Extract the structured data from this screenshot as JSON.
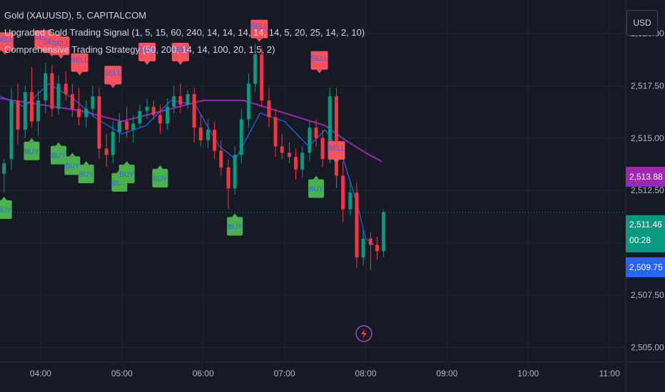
{
  "header": {
    "symbol_line": "Gold (XAUUSD), 5, CAPITALCOM",
    "indicator_1": "Upgraded Gold Trading Signal (1, 5, 15, 60, 240, 14, 14, 14, 14, 14, 5, 20, 25, 14, 2, 10)",
    "indicator_2": "Comprehensive Trading Strategy (50, 200, 14, 14, 100, 20, 1.5, 2)",
    "currency_button": "USD"
  },
  "price_tags": {
    "ma_value": "2,513.88",
    "last_price": "2,511.46",
    "countdown": "00:28",
    "blue_value": "2,509.75"
  },
  "colors": {
    "background": "#161a25",
    "up": "#089981",
    "down": "#f23645",
    "ma_purple": "#9c27b0",
    "ma_blue": "#2962ff",
    "sell_label": "#f7525f",
    "buy_label": "#4caf50"
  },
  "chart_data": {
    "type": "candlestick",
    "x_tick_labels": [
      "04:00",
      "05:00",
      "06:00",
      "07:00",
      "08:00",
      "09:00",
      "10:00",
      "11:00"
    ],
    "y_tick_labels": [
      "2,505.00",
      "2,507.50",
      "2,510.00",
      "2,512.50",
      "2,515.00",
      "2,517.50",
      "2,520.00"
    ],
    "y_ticks": [
      2505,
      2507.5,
      2510,
      2512.5,
      2515,
      2517.5,
      2520
    ],
    "ylim": [
      2504.3,
      2521.6
    ],
    "x_axis_hours": [
      4,
      5,
      6,
      7,
      8,
      9,
      10,
      11
    ],
    "x_range_hours": [
      3.5,
      11.2
    ],
    "candles": [
      {
        "t": 3.55,
        "o": 2513.3,
        "h": 2514.0,
        "l": 2512.4,
        "c": 2513.8
      },
      {
        "t": 3.64,
        "o": 2514.0,
        "h": 2517.4,
        "l": 2513.5,
        "c": 2516.8
      },
      {
        "t": 3.72,
        "o": 2516.8,
        "h": 2517.6,
        "l": 2514.7,
        "c": 2515.4
      },
      {
        "t": 3.81,
        "o": 2515.4,
        "h": 2517.5,
        "l": 2515.0,
        "c": 2517.2
      },
      {
        "t": 3.89,
        "o": 2517.2,
        "h": 2518.4,
        "l": 2515.5,
        "c": 2515.8
      },
      {
        "t": 3.97,
        "o": 2515.8,
        "h": 2517.3,
        "l": 2515.1,
        "c": 2516.8
      },
      {
        "t": 4.06,
        "o": 2516.8,
        "h": 2518.6,
        "l": 2516.2,
        "c": 2518.1
      },
      {
        "t": 4.14,
        "o": 2518.1,
        "h": 2518.5,
        "l": 2516.0,
        "c": 2516.4
      },
      {
        "t": 4.22,
        "o": 2516.4,
        "h": 2518.0,
        "l": 2516.1,
        "c": 2517.6
      },
      {
        "t": 4.31,
        "o": 2517.6,
        "h": 2518.2,
        "l": 2516.8,
        "c": 2517.1
      },
      {
        "t": 4.39,
        "o": 2517.1,
        "h": 2517.6,
        "l": 2516.0,
        "c": 2516.4
      },
      {
        "t": 4.47,
        "o": 2516.4,
        "h": 2517.4,
        "l": 2515.6,
        "c": 2516.0
      },
      {
        "t": 4.56,
        "o": 2516.0,
        "h": 2516.8,
        "l": 2515.5,
        "c": 2516.4
      },
      {
        "t": 4.64,
        "o": 2516.4,
        "h": 2517.5,
        "l": 2516.0,
        "c": 2517.0
      },
      {
        "t": 4.72,
        "o": 2517.0,
        "h": 2517.4,
        "l": 2514.0,
        "c": 2514.5
      },
      {
        "t": 4.81,
        "o": 2514.5,
        "h": 2515.2,
        "l": 2513.6,
        "c": 2514.2
      },
      {
        "t": 4.89,
        "o": 2514.2,
        "h": 2515.8,
        "l": 2513.8,
        "c": 2515.3
      },
      {
        "t": 4.97,
        "o": 2515.3,
        "h": 2516.2,
        "l": 2514.8,
        "c": 2515.8
      },
      {
        "t": 5.06,
        "o": 2515.8,
        "h": 2516.5,
        "l": 2515.0,
        "c": 2515.4
      },
      {
        "t": 5.14,
        "o": 2515.4,
        "h": 2516.1,
        "l": 2514.8,
        "c": 2515.7
      },
      {
        "t": 5.22,
        "o": 2515.7,
        "h": 2516.6,
        "l": 2515.5,
        "c": 2516.3
      },
      {
        "t": 5.31,
        "o": 2516.3,
        "h": 2516.9,
        "l": 2515.9,
        "c": 2516.5
      },
      {
        "t": 5.39,
        "o": 2516.5,
        "h": 2516.8,
        "l": 2515.9,
        "c": 2516.1
      },
      {
        "t": 5.47,
        "o": 2516.1,
        "h": 2516.6,
        "l": 2515.2,
        "c": 2515.7
      },
      {
        "t": 5.56,
        "o": 2515.7,
        "h": 2516.9,
        "l": 2515.4,
        "c": 2516.5
      },
      {
        "t": 5.64,
        "o": 2516.5,
        "h": 2517.5,
        "l": 2516.2,
        "c": 2517.0
      },
      {
        "t": 5.72,
        "o": 2517.0,
        "h": 2517.6,
        "l": 2516.2,
        "c": 2516.6
      },
      {
        "t": 5.81,
        "o": 2516.6,
        "h": 2517.3,
        "l": 2516.4,
        "c": 2517.1
      },
      {
        "t": 5.89,
        "o": 2517.1,
        "h": 2517.4,
        "l": 2514.8,
        "c": 2515.5
      },
      {
        "t": 5.97,
        "o": 2515.5,
        "h": 2516.1,
        "l": 2514.6,
        "c": 2514.9
      },
      {
        "t": 6.06,
        "o": 2514.9,
        "h": 2515.9,
        "l": 2514.5,
        "c": 2515.4
      },
      {
        "t": 6.14,
        "o": 2515.4,
        "h": 2515.8,
        "l": 2514.0,
        "c": 2514.4
      },
      {
        "t": 6.22,
        "o": 2514.4,
        "h": 2514.9,
        "l": 2513.2,
        "c": 2513.6
      },
      {
        "t": 6.31,
        "o": 2513.6,
        "h": 2514.0,
        "l": 2511.6,
        "c": 2512.6
      },
      {
        "t": 6.39,
        "o": 2512.6,
        "h": 2514.6,
        "l": 2512.3,
        "c": 2514.2
      },
      {
        "t": 6.47,
        "o": 2514.2,
        "h": 2516.4,
        "l": 2513.8,
        "c": 2515.9
      },
      {
        "t": 6.56,
        "o": 2515.9,
        "h": 2518.1,
        "l": 2515.5,
        "c": 2517.6
      },
      {
        "t": 6.64,
        "o": 2517.6,
        "h": 2519.5,
        "l": 2517.2,
        "c": 2519.0
      },
      {
        "t": 6.72,
        "o": 2519.0,
        "h": 2519.3,
        "l": 2516.5,
        "c": 2516.8
      },
      {
        "t": 6.81,
        "o": 2516.8,
        "h": 2517.4,
        "l": 2515.5,
        "c": 2516.0
      },
      {
        "t": 6.89,
        "o": 2516.0,
        "h": 2516.4,
        "l": 2514.1,
        "c": 2514.6
      },
      {
        "t": 6.97,
        "o": 2514.6,
        "h": 2515.2,
        "l": 2514.0,
        "c": 2514.3
      },
      {
        "t": 7.06,
        "o": 2514.3,
        "h": 2514.8,
        "l": 2513.8,
        "c": 2514.1
      },
      {
        "t": 7.14,
        "o": 2514.1,
        "h": 2514.5,
        "l": 2513.0,
        "c": 2513.5
      },
      {
        "t": 7.22,
        "o": 2513.5,
        "h": 2514.6,
        "l": 2513.1,
        "c": 2514.3
      },
      {
        "t": 7.31,
        "o": 2514.3,
        "h": 2515.8,
        "l": 2513.9,
        "c": 2515.5
      },
      {
        "t": 7.39,
        "o": 2515.5,
        "h": 2515.9,
        "l": 2514.6,
        "c": 2515.0
      },
      {
        "t": 7.47,
        "o": 2515.0,
        "h": 2515.4,
        "l": 2513.6,
        "c": 2514.0
      },
      {
        "t": 7.56,
        "o": 2514.0,
        "h": 2517.4,
        "l": 2513.8,
        "c": 2517.0
      },
      {
        "t": 7.64,
        "o": 2517.0,
        "h": 2517.4,
        "l": 2512.6,
        "c": 2513.2
      },
      {
        "t": 7.72,
        "o": 2513.2,
        "h": 2513.9,
        "l": 2511.0,
        "c": 2511.6
      },
      {
        "t": 7.81,
        "o": 2511.6,
        "h": 2512.9,
        "l": 2511.3,
        "c": 2512.4
      },
      {
        "t": 7.89,
        "o": 2512.4,
        "h": 2512.9,
        "l": 2508.8,
        "c": 2509.3
      },
      {
        "t": 7.97,
        "o": 2509.3,
        "h": 2510.6,
        "l": 2508.9,
        "c": 2510.2
      },
      {
        "t": 8.06,
        "o": 2510.2,
        "h": 2510.5,
        "l": 2508.7,
        "c": 2509.9
      },
      {
        "t": 8.14,
        "o": 2509.9,
        "h": 2510.3,
        "l": 2509.2,
        "c": 2509.6
      },
      {
        "t": 8.22,
        "o": 2509.6,
        "h": 2511.6,
        "l": 2509.3,
        "c": 2511.46
      }
    ],
    "ma_purple_points": [
      [
        3.5,
        2516.9
      ],
      [
        4.0,
        2516.6
      ],
      [
        4.5,
        2516.3
      ],
      [
        5.0,
        2515.8
      ],
      [
        5.5,
        2516.3
      ],
      [
        6.0,
        2516.8
      ],
      [
        6.5,
        2516.8
      ],
      [
        7.0,
        2516.2
      ],
      [
        7.5,
        2515.6
      ],
      [
        7.75,
        2514.9
      ],
      [
        8.0,
        2514.3
      ],
      [
        8.2,
        2513.88
      ]
    ],
    "ma_blue_points": [
      [
        3.5,
        2517.0
      ],
      [
        3.8,
        2516.5
      ],
      [
        4.1,
        2517.6
      ],
      [
        4.4,
        2516.9
      ],
      [
        4.7,
        2515.9
      ],
      [
        5.0,
        2515.2
      ],
      [
        5.3,
        2515.6
      ],
      [
        5.6,
        2516.8
      ],
      [
        5.9,
        2516.6
      ],
      [
        6.2,
        2514.6
      ],
      [
        6.4,
        2514.0
      ],
      [
        6.7,
        2516.2
      ],
      [
        7.0,
        2515.8
      ],
      [
        7.3,
        2514.6
      ],
      [
        7.5,
        2515.4
      ],
      [
        7.7,
        2514.3
      ],
      [
        7.9,
        2511.8
      ],
      [
        8.0,
        2510.2
      ],
      [
        8.1,
        2509.9
      ]
    ],
    "signals": [
      {
        "text": "SELL",
        "kind": "sell",
        "t": 3.56,
        "y": 2519.0
      },
      {
        "text": "SELL",
        "kind": "sell",
        "t": 4.03,
        "y": 2519.1
      },
      {
        "text": "SELL",
        "kind": "sell",
        "t": 4.14,
        "y": 2518.9
      },
      {
        "text": "SELL",
        "kind": "sell",
        "t": 4.25,
        "y": 2518.8
      },
      {
        "text": "SELL",
        "kind": "sell",
        "t": 4.48,
        "y": 2518.0
      },
      {
        "text": "SELL",
        "kind": "sell",
        "t": 4.89,
        "y": 2517.4
      },
      {
        "text": "SELL",
        "kind": "sell",
        "t": 5.31,
        "y": 2518.5
      },
      {
        "text": "SELL",
        "kind": "sell",
        "t": 5.72,
        "y": 2518.5
      },
      {
        "text": "SELL",
        "kind": "sell",
        "t": 6.69,
        "y": 2519.6
      },
      {
        "text": "SELL",
        "kind": "sell",
        "t": 7.43,
        "y": 2518.1
      },
      {
        "text": "SELL",
        "kind": "sell",
        "t": 7.64,
        "y": 2513.8
      },
      {
        "text": "BUY",
        "kind": "buy",
        "t": 3.55,
        "y": 2512.2
      },
      {
        "text": "BUY",
        "kind": "buy",
        "t": 3.89,
        "y": 2515.0
      },
      {
        "text": "BUY",
        "kind": "buy",
        "t": 4.22,
        "y": 2514.8
      },
      {
        "text": "BUY",
        "kind": "buy",
        "t": 4.39,
        "y": 2514.3
      },
      {
        "text": "BUY",
        "kind": "buy",
        "t": 4.56,
        "y": 2513.9
      },
      {
        "text": "BUY",
        "kind": "buy",
        "t": 4.97,
        "y": 2513.5
      },
      {
        "text": "BUY",
        "kind": "buy",
        "t": 5.06,
        "y": 2513.9
      },
      {
        "text": "BUY",
        "kind": "buy",
        "t": 5.47,
        "y": 2513.7
      },
      {
        "text": "BUY",
        "kind": "buy",
        "t": 6.39,
        "y": 2511.4
      },
      {
        "text": "BUY",
        "kind": "buy",
        "t": 7.39,
        "y": 2513.2
      }
    ],
    "last_price_line": 2511.46,
    "grid": true
  }
}
